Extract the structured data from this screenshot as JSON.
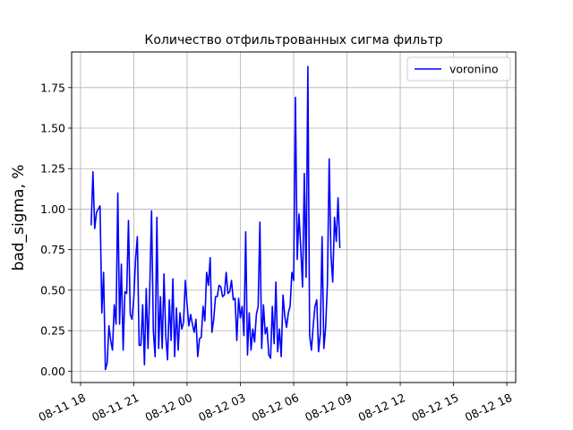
{
  "chart_data": {
    "type": "line",
    "title": "Количество отфильтрованных сигма фильтр",
    "xlabel": "",
    "ylabel": "bad_sigma, %",
    "grid": true,
    "legend_position": "top-right",
    "xlim": [
      "2025-08-11T17:30",
      "2025-08-12T18:30"
    ],
    "ylim": [
      -0.07,
      1.97
    ],
    "x_ticks": [
      "08-11 18",
      "08-11 21",
      "08-12 00",
      "08-12 03",
      "08-12 06",
      "08-12 09",
      "08-12 12",
      "08-12 15",
      "08-12 18"
    ],
    "x_tick_times": [
      "2025-08-11T18:00",
      "2025-08-11T21:00",
      "2025-08-12T00:00",
      "2025-08-12T03:00",
      "2025-08-12T06:00",
      "2025-08-12T09:00",
      "2025-08-12T12:00",
      "2025-08-12T15:00",
      "2025-08-12T18:00"
    ],
    "y_ticks": [
      "0.00",
      "0.25",
      "0.50",
      "0.75",
      "1.00",
      "1.25",
      "1.50",
      "1.75"
    ],
    "y_tick_values": [
      0,
      0.25,
      0.5,
      0.75,
      1.0,
      1.25,
      1.5,
      1.75
    ],
    "series": [
      {
        "name": "voronino",
        "color": "#0000ff",
        "start": "2025-08-11T18:36",
        "interval_minutes": 6,
        "y": [
          0.9,
          1.23,
          0.88,
          0.98,
          1.0,
          1.02,
          0.36,
          0.61,
          0.01,
          0.05,
          0.28,
          0.19,
          0.13,
          0.41,
          0.29,
          1.1,
          0.29,
          0.66,
          0.13,
          0.49,
          0.48,
          0.93,
          0.35,
          0.32,
          0.45,
          0.69,
          0.83,
          0.16,
          0.16,
          0.41,
          0.04,
          0.51,
          0.14,
          0.52,
          0.99,
          0.25,
          0.09,
          0.95,
          0.14,
          0.46,
          0.14,
          0.6,
          0.22,
          0.07,
          0.44,
          0.19,
          0.57,
          0.09,
          0.39,
          0.13,
          0.36,
          0.26,
          0.3,
          0.56,
          0.41,
          0.28,
          0.35,
          0.29,
          0.24,
          0.32,
          0.09,
          0.2,
          0.21,
          0.4,
          0.31,
          0.61,
          0.53,
          0.7,
          0.24,
          0.32,
          0.46,
          0.46,
          0.53,
          0.52,
          0.46,
          0.47,
          0.61,
          0.48,
          0.49,
          0.56,
          0.44,
          0.45,
          0.19,
          0.45,
          0.33,
          0.4,
          0.22,
          0.86,
          0.1,
          0.36,
          0.13,
          0.26,
          0.18,
          0.35,
          0.4,
          0.92,
          0.14,
          0.41,
          0.23,
          0.27,
          0.1,
          0.08,
          0.4,
          0.17,
          0.55,
          0.12,
          0.26,
          0.09,
          0.47,
          0.34,
          0.27,
          0.36,
          0.4,
          0.61,
          0.56,
          1.69,
          0.69,
          0.97,
          0.76,
          0.52,
          1.22,
          0.58,
          1.88,
          0.22,
          0.13,
          0.28,
          0.4,
          0.44,
          0.12,
          0.23,
          0.83,
          0.14,
          0.27,
          0.54,
          1.31,
          0.72,
          0.55,
          0.95,
          0.8,
          1.07,
          0.76
        ]
      }
    ]
  }
}
